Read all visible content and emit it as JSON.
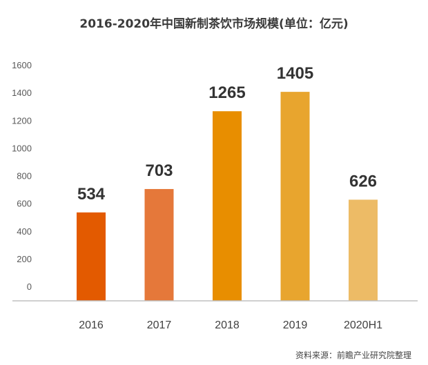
{
  "chart_data": {
    "type": "bar",
    "title": "2016-2020年中国新制茶饮市场规模(单位：亿元)",
    "source": "资料来源：前瞻产业研究院整理",
    "categories": [
      "2016",
      "2017",
      "2018",
      "2019",
      "2020H1"
    ],
    "values": [
      534,
      703,
      1265,
      1405,
      626
    ],
    "data_labels": [
      "534",
      "703",
      "1265",
      "1405",
      "626"
    ],
    "bar_colors": [
      "#E35A00",
      "#E5783A",
      "#E88E00",
      "#E8A52E",
      "#EDBB66"
    ],
    "yticks": [
      0,
      200,
      400,
      600,
      800,
      1000,
      1200,
      1400,
      1600
    ],
    "ylim": [
      0,
      1600
    ],
    "grid": false,
    "legend": "none",
    "xlabel": "",
    "ylabel": ""
  }
}
